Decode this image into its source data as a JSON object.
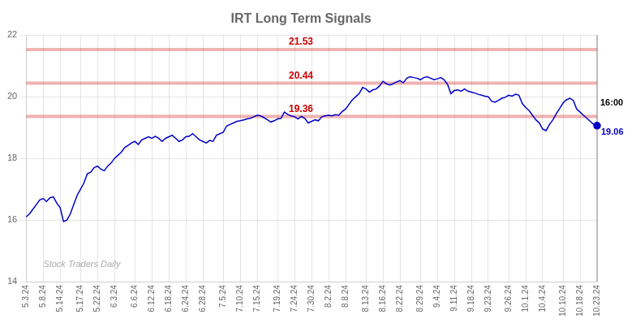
{
  "chart_data": {
    "type": "line",
    "title": "IRT Long Term Signals",
    "categories": [
      "5.3.24",
      null,
      null,
      null,
      null,
      "5.8.24",
      null,
      null,
      null,
      null,
      "5.14.24",
      null,
      null,
      null,
      null,
      null,
      "5.17.24",
      null,
      null,
      null,
      null,
      "5.22.24",
      null,
      null,
      null,
      null,
      "6.3.24",
      null,
      null,
      null,
      null,
      null,
      "6.6.24",
      null,
      null,
      null,
      null,
      "6.12.24",
      null,
      null,
      null,
      null,
      "6.18.24",
      null,
      null,
      null,
      null,
      "6.24.24",
      null,
      null,
      null,
      null,
      "6.28.24",
      null,
      null,
      null,
      null,
      null,
      "7.5.24",
      null,
      null,
      null,
      null,
      "7.10.24",
      null,
      null,
      null,
      null,
      "7.15.24",
      null,
      null,
      null,
      null,
      null,
      "7.19.24",
      null,
      null,
      null,
      null,
      "7.24.24",
      null,
      null,
      null,
      null,
      "7.30.24",
      null,
      null,
      null,
      null,
      "8.2.24",
      null,
      null,
      null,
      null,
      "8.8.24",
      null,
      null,
      null,
      null,
      null,
      "8.13.24",
      null,
      null,
      null,
      null,
      "8.16.24",
      null,
      null,
      null,
      null,
      "8.22.24",
      null,
      null,
      null,
      null,
      null,
      "8.29.24",
      null,
      null,
      null,
      null,
      "9.4.24",
      null,
      null,
      null,
      null,
      "9.11.24",
      null,
      null,
      null,
      null,
      "9.18.24",
      null,
      null,
      null,
      null,
      "9.23.24",
      null,
      null,
      null,
      null,
      null,
      "9.26.24",
      null,
      null,
      null,
      null,
      "10.1.24",
      null,
      null,
      null,
      null,
      "10.4.24",
      null,
      null,
      null,
      null,
      null,
      "10.10.24",
      null,
      null,
      null,
      null,
      "10.18.24",
      null,
      null,
      null,
      null,
      "10.23.24"
    ],
    "values": [
      16.1,
      16.2,
      16.35,
      16.5,
      16.65,
      16.7,
      16.6,
      16.72,
      16.75,
      16.55,
      16.4,
      15.95,
      16.0,
      16.2,
      16.5,
      16.8,
      17.0,
      17.2,
      17.5,
      17.55,
      17.7,
      17.75,
      17.65,
      17.6,
      17.75,
      17.85,
      18.0,
      18.1,
      18.2,
      18.35,
      18.42,
      18.5,
      18.55,
      18.45,
      18.6,
      18.65,
      18.7,
      18.65,
      18.72,
      18.65,
      18.55,
      18.65,
      18.7,
      18.75,
      18.65,
      18.55,
      18.6,
      18.7,
      18.72,
      18.8,
      18.7,
      18.6,
      18.55,
      18.5,
      18.58,
      18.55,
      18.75,
      18.8,
      18.85,
      19.05,
      19.1,
      19.15,
      19.2,
      19.22,
      19.25,
      19.28,
      19.3,
      19.35,
      19.4,
      19.38,
      19.32,
      19.25,
      19.18,
      19.22,
      19.28,
      19.3,
      19.5,
      19.42,
      19.38,
      19.35,
      19.28,
      19.36,
      19.3,
      19.15,
      19.2,
      19.25,
      19.22,
      19.35,
      19.38,
      19.4,
      19.38,
      19.42,
      19.4,
      19.52,
      19.6,
      19.75,
      19.9,
      20.0,
      20.1,
      20.3,
      20.25,
      20.15,
      20.22,
      20.25,
      20.35,
      20.5,
      20.42,
      20.38,
      20.42,
      20.48,
      20.52,
      20.45,
      20.6,
      20.65,
      20.62,
      20.6,
      20.55,
      20.62,
      20.65,
      20.6,
      20.55,
      20.58,
      20.62,
      20.55,
      20.4,
      20.1,
      20.2,
      20.22,
      20.18,
      20.25,
      20.18,
      20.15,
      20.12,
      20.08,
      20.05,
      20.02,
      20.0,
      19.85,
      19.82,
      19.88,
      19.95,
      19.98,
      20.05,
      20.02,
      20.08,
      20.05,
      19.78,
      19.65,
      19.55,
      19.4,
      19.25,
      19.15,
      18.95,
      18.9,
      19.1,
      19.25,
      19.45,
      19.62,
      19.8,
      19.9,
      19.95,
      19.88,
      19.6,
      19.5,
      19.4,
      19.3,
      19.2,
      19.1,
      19.06
    ],
    "color": "#0000cc",
    "ylim": [
      14,
      22
    ],
    "yticks": [
      14,
      16,
      18,
      20,
      22
    ],
    "grid": true,
    "annotations": [
      {
        "type": "hline",
        "text": "21.53",
        "y": 21.53,
        "color": "#cc0000"
      },
      {
        "type": "hline",
        "text": "20.44",
        "y": 20.44,
        "color": "#cc0000"
      },
      {
        "type": "hline",
        "text": "19.36",
        "y": 19.36,
        "color": "#cc0000"
      },
      {
        "type": "point",
        "text": "16:00"
      },
      {
        "type": "point_value",
        "text": "19.06",
        "color": "#0000cc"
      },
      {
        "type": "watermark",
        "text": "Stock Traders Daily"
      }
    ]
  }
}
